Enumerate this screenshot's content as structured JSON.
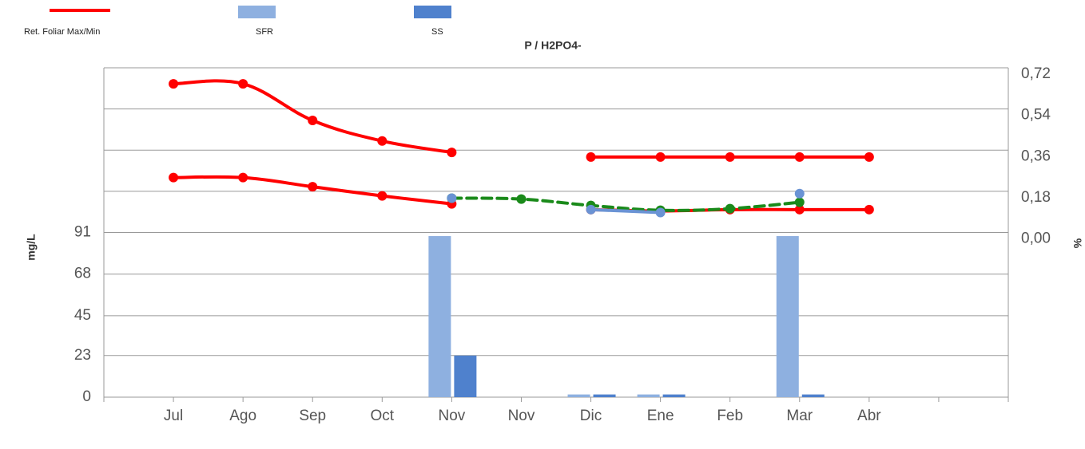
{
  "chart_data": {
    "type": "combo",
    "title": "P / H2PO4-",
    "ylabel": "mg/L",
    "y2label": "%",
    "categories": [
      "Jul",
      "Ago",
      "Sep",
      "Oct",
      "Nov",
      "Nov",
      "Dic",
      "Ene",
      "Feb",
      "Mar",
      "Abr"
    ],
    "ylim": [
      0,
      182
    ],
    "yticks": [
      0,
      23,
      45,
      68,
      91
    ],
    "y2lim": [
      -0.72,
      0.72
    ],
    "y2ticks": [
      {
        "value": 0,
        "label": "0,00"
      },
      {
        "value": 0.18,
        "label": "0,18"
      },
      {
        "value": 0.36,
        "label": "0,36"
      },
      {
        "value": 0.54,
        "label": "0,54"
      },
      {
        "value": 0.72,
        "label": "0,72"
      }
    ],
    "grid": true,
    "series": [
      {
        "name": "Ret. Foliar Max/Min",
        "type": "line",
        "axis": "y2",
        "color": "#ff0000",
        "values": [
          0.65,
          0.65,
          0.49,
          0.4,
          0.35,
          null,
          0.33,
          0.33,
          0.33,
          0.33,
          0.33
        ]
      },
      {
        "type": "line",
        "axis": "y2",
        "color": "#ff0000",
        "values": [
          0.24,
          0.24,
          0.2,
          0.16,
          0.125,
          null,
          0.1,
          0.094,
          0.1,
          0.1,
          0.1
        ]
      },
      {
        "name": "SFR",
        "type": "bar",
        "color": "#8eb0e0",
        "values": [
          null,
          null,
          null,
          null,
          89,
          null,
          1.5,
          1.5,
          null,
          89,
          null
        ]
      },
      {
        "name": "SS",
        "type": "bar",
        "color": "#4f81cd",
        "values": [
          null,
          null,
          null,
          null,
          23,
          null,
          1.5,
          1.5,
          null,
          1.5,
          null
        ]
      },
      {
        "type": "line",
        "axis": "y2",
        "color": "#1a8a1a",
        "dash": true,
        "values": [
          null,
          null,
          null,
          null,
          0.15,
          0.146,
          0.118,
          0.097,
          0.104,
          0.132,
          null
        ]
      },
      {
        "type": "line",
        "axis": "y2",
        "color": "#6a93d4",
        "values": [
          null,
          null,
          null,
          null,
          0.15,
          null,
          0.1,
          0.087,
          null,
          0.17,
          null
        ]
      }
    ]
  }
}
